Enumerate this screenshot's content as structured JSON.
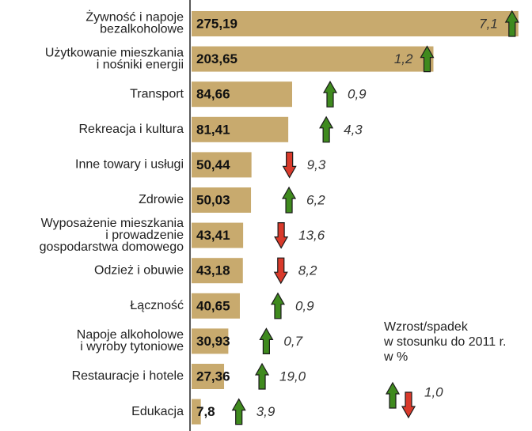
{
  "chart_data": {
    "type": "bar",
    "categories": [
      [
        "Żywność i napoje",
        "bezalkoholowe"
      ],
      [
        "Użytkowanie mieszkania",
        "i nośniki energii"
      ],
      [
        "Transport"
      ],
      [
        "Rekreacja i kultura"
      ],
      [
        "Inne towary i usługi"
      ],
      [
        "Zdrowie"
      ],
      [
        "Wyposażenie mieszkania",
        "i prowadzenie",
        "gospodarstwa domowego"
      ],
      [
        "Odzież i obuwie"
      ],
      [
        "Łączność"
      ],
      [
        "Napoje alkoholowe",
        "i wyroby tytoniowe"
      ],
      [
        "Restauracje i hotele"
      ],
      [
        "Edukacja"
      ]
    ],
    "values": [
      275.19,
      203.65,
      84.66,
      81.41,
      50.44,
      50.03,
      43.41,
      43.18,
      40.65,
      30.93,
      27.36,
      7.8
    ],
    "value_labels": [
      "275,19",
      "203,65",
      "84,66",
      "81,41",
      "50,44",
      "50,03",
      "43,41",
      "43,18",
      "40,65",
      "30,93",
      "27,36",
      "7,8"
    ],
    "color": "#c8aa6e",
    "change": {
      "values": [
        7.1,
        1.2,
        0.9,
        4.3,
        -9.3,
        6.2,
        -13.6,
        -8.2,
        0.9,
        0.7,
        19.0,
        3.9
      ],
      "value_labels": [
        "7,1",
        "1,2",
        "0,9",
        "4,3",
        "9,3",
        "6,2",
        "13,6",
        "8,2",
        "0,9",
        "0,7",
        "19,0",
        "3,9"
      ],
      "up_color": "#3f8a1e",
      "down_color": "#d93a2b"
    },
    "legend": {
      "title": [
        "Wzrost/spadek",
        "w stosunku do 2011 r.",
        "w %"
      ],
      "example": "1,0"
    }
  }
}
